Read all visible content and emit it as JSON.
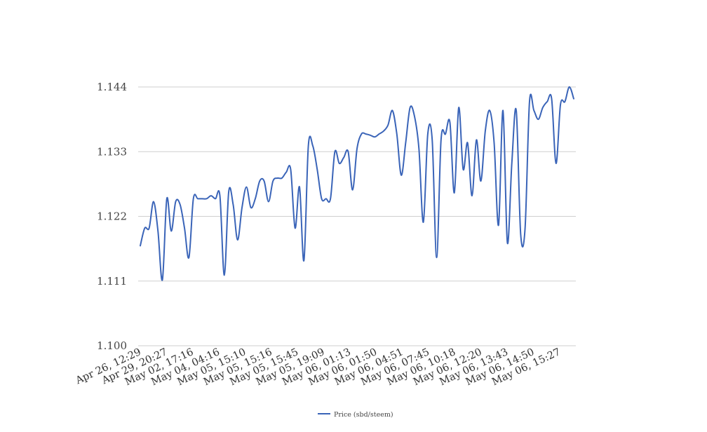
{
  "chart_data": {
    "type": "line",
    "title": "",
    "xlabel": "",
    "ylabel": "",
    "ylim": [
      1.1,
      1.144
    ],
    "yticks": [
      "1.144",
      "1.133",
      "1.122",
      "1.111",
      "1.100"
    ],
    "ytick_values": [
      1.144,
      1.133,
      1.122,
      1.111,
      1.1
    ],
    "grid": true,
    "legend_position": "bottom-center",
    "xtick_labels": [
      "Apr 26, 12:29",
      "Apr 29, 20:27",
      "May 02, 17:16",
      "May 04, 04:16",
      "May 05, 15:10",
      "May 05, 15:16",
      "May 05, 15:45",
      "May 05, 19:09",
      "May 06, 01:13",
      "May 06, 01:50",
      "May 06, 04:51",
      "May 06, 07:45",
      "May 06, 10:18",
      "May 06, 12:20",
      "May 06, 13:43",
      "May 06, 14:50",
      "May 06, 15:27"
    ],
    "series": [
      {
        "name": "Price (sbd/steem)",
        "color": "#3a64b8",
        "values": [
          1.117,
          1.12,
          1.12,
          1.1245,
          1.1195,
          1.1112,
          1.125,
          1.1195,
          1.1245,
          1.124,
          1.12,
          1.115,
          1.125,
          1.125,
          1.125,
          1.125,
          1.1255,
          1.125,
          1.1255,
          1.112,
          1.1262,
          1.124,
          1.118,
          1.1235,
          1.127,
          1.1235,
          1.125,
          1.128,
          1.128,
          1.1245,
          1.128,
          1.1285,
          1.1285,
          1.1295,
          1.13,
          1.12,
          1.127,
          1.1145,
          1.134,
          1.134,
          1.13,
          1.125,
          1.125,
          1.125,
          1.133,
          1.131,
          1.132,
          1.133,
          1.1265,
          1.1335,
          1.136,
          1.136,
          1.1358,
          1.1355,
          1.136,
          1.1365,
          1.1375,
          1.14,
          1.136,
          1.129,
          1.1345,
          1.1405,
          1.139,
          1.1335,
          1.121,
          1.136,
          1.135,
          1.115,
          1.135,
          1.136,
          1.138,
          1.126,
          1.1405,
          1.13,
          1.1345,
          1.1255,
          1.135,
          1.128,
          1.1365,
          1.14,
          1.1345,
          1.1205,
          1.14,
          1.1175,
          1.131,
          1.14,
          1.119,
          1.12,
          1.1415,
          1.14,
          1.1385,
          1.1405,
          1.1415,
          1.142,
          1.131,
          1.141,
          1.1415,
          1.144,
          1.142
        ]
      }
    ]
  }
}
